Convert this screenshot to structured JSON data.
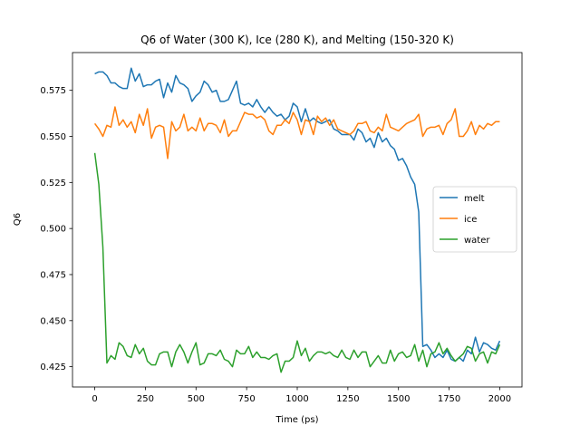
{
  "chart_data": {
    "type": "line",
    "title": "Q6 of Water (300 K), Ice (280 K), and Melting (150-320 K)",
    "xlabel": "Time  (ps)",
    "ylabel": "Q6",
    "xlim": [
      -110,
      2110
    ],
    "ylim": [
      0.414,
      0.5955
    ],
    "xticks": [
      0,
      250,
      500,
      750,
      1000,
      1250,
      1500,
      1750,
      2000
    ],
    "xtick_labels": [
      "0",
      "250",
      "500",
      "750",
      "1000",
      "1250",
      "1500",
      "1750",
      "2000"
    ],
    "yticks": [
      0.425,
      0.45,
      0.475,
      0.5,
      0.525,
      0.55,
      0.575
    ],
    "ytick_labels": [
      "0.425",
      "0.450",
      "0.475",
      "0.500",
      "0.525",
      "0.550",
      "0.575"
    ],
    "grid": false,
    "legend_position": "center-right",
    "series": [
      {
        "name": "melt",
        "color": "#1f77b4",
        "x": [
          0,
          20,
          40,
          60,
          80,
          100,
          120,
          140,
          160,
          180,
          200,
          220,
          240,
          260,
          280,
          300,
          320,
          340,
          360,
          380,
          400,
          420,
          440,
          460,
          480,
          500,
          520,
          540,
          560,
          580,
          600,
          620,
          640,
          660,
          680,
          700,
          720,
          740,
          760,
          780,
          800,
          820,
          840,
          860,
          880,
          900,
          920,
          940,
          960,
          980,
          1000,
          1020,
          1040,
          1060,
          1080,
          1100,
          1120,
          1140,
          1160,
          1180,
          1200,
          1220,
          1240,
          1260,
          1280,
          1300,
          1320,
          1340,
          1360,
          1380,
          1400,
          1420,
          1440,
          1460,
          1480,
          1500,
          1520,
          1540,
          1560,
          1580,
          1600,
          1620,
          1640,
          1660,
          1680,
          1700,
          1720,
          1740,
          1760,
          1780,
          1800,
          1820,
          1840,
          1860,
          1880,
          1900,
          1920,
          1940,
          1960,
          1980,
          2000
        ],
        "y": [
          0.584,
          0.585,
          0.585,
          0.583,
          0.579,
          0.579,
          0.577,
          0.576,
          0.576,
          0.587,
          0.58,
          0.584,
          0.577,
          0.578,
          0.578,
          0.58,
          0.581,
          0.571,
          0.579,
          0.574,
          0.583,
          0.579,
          0.578,
          0.576,
          0.569,
          0.572,
          0.574,
          0.58,
          0.578,
          0.574,
          0.575,
          0.569,
          0.569,
          0.57,
          0.575,
          0.58,
          0.568,
          0.567,
          0.568,
          0.566,
          0.57,
          0.566,
          0.563,
          0.566,
          0.563,
          0.561,
          0.562,
          0.559,
          0.561,
          0.568,
          0.566,
          0.558,
          0.565,
          0.558,
          0.56,
          0.558,
          0.557,
          0.558,
          0.559,
          0.554,
          0.553,
          0.551,
          0.551,
          0.551,
          0.548,
          0.554,
          0.552,
          0.547,
          0.549,
          0.544,
          0.552,
          0.547,
          0.549,
          0.545,
          0.543,
          0.537,
          0.538,
          0.534,
          0.528,
          0.524,
          0.509,
          0.436,
          0.437,
          0.434,
          0.43,
          0.432,
          0.43,
          0.434,
          0.429,
          0.428,
          0.43,
          0.428,
          0.434,
          0.432,
          0.441,
          0.433,
          0.438,
          0.437,
          0.435,
          0.434,
          0.439
        ]
      },
      {
        "name": "ice",
        "color": "#ff7f0e",
        "x": [
          0,
          20,
          40,
          60,
          80,
          100,
          120,
          140,
          160,
          180,
          200,
          220,
          240,
          260,
          280,
          300,
          320,
          340,
          360,
          380,
          400,
          420,
          440,
          460,
          480,
          500,
          520,
          540,
          560,
          580,
          600,
          620,
          640,
          660,
          680,
          700,
          720,
          740,
          760,
          780,
          800,
          820,
          840,
          860,
          880,
          900,
          920,
          940,
          960,
          980,
          1000,
          1020,
          1040,
          1060,
          1080,
          1100,
          1120,
          1140,
          1160,
          1180,
          1200,
          1220,
          1240,
          1260,
          1280,
          1300,
          1320,
          1340,
          1360,
          1380,
          1400,
          1420,
          1440,
          1460,
          1480,
          1500,
          1520,
          1540,
          1560,
          1580,
          1600,
          1620,
          1640,
          1660,
          1680,
          1700,
          1720,
          1740,
          1760,
          1780,
          1800,
          1820,
          1840,
          1860,
          1880,
          1900,
          1920,
          1940,
          1960,
          1980,
          2000
        ],
        "y": [
          0.557,
          0.554,
          0.55,
          0.556,
          0.555,
          0.566,
          0.556,
          0.559,
          0.555,
          0.558,
          0.552,
          0.562,
          0.556,
          0.565,
          0.549,
          0.555,
          0.556,
          0.555,
          0.538,
          0.558,
          0.553,
          0.555,
          0.562,
          0.553,
          0.555,
          0.553,
          0.56,
          0.553,
          0.557,
          0.557,
          0.556,
          0.552,
          0.559,
          0.55,
          0.553,
          0.553,
          0.558,
          0.563,
          0.562,
          0.562,
          0.56,
          0.561,
          0.559,
          0.553,
          0.551,
          0.556,
          0.556,
          0.559,
          0.557,
          0.563,
          0.559,
          0.551,
          0.559,
          0.558,
          0.551,
          0.561,
          0.558,
          0.56,
          0.556,
          0.559,
          0.554,
          0.553,
          0.552,
          0.551,
          0.553,
          0.557,
          0.557,
          0.558,
          0.553,
          0.552,
          0.555,
          0.553,
          0.562,
          0.555,
          0.554,
          0.553,
          0.555,
          0.557,
          0.558,
          0.559,
          0.562,
          0.55,
          0.554,
          0.555,
          0.555,
          0.556,
          0.551,
          0.557,
          0.559,
          0.565,
          0.55,
          0.55,
          0.553,
          0.558,
          0.551,
          0.556,
          0.554,
          0.557,
          0.556,
          0.558,
          0.558
        ]
      },
      {
        "name": "water",
        "color": "#2ca02c",
        "x": [
          0,
          20,
          40,
          60,
          80,
          100,
          120,
          140,
          160,
          180,
          200,
          220,
          240,
          260,
          280,
          300,
          320,
          340,
          360,
          380,
          400,
          420,
          440,
          460,
          480,
          500,
          520,
          540,
          560,
          580,
          600,
          620,
          640,
          660,
          680,
          700,
          720,
          740,
          760,
          780,
          800,
          820,
          840,
          860,
          880,
          900,
          920,
          940,
          960,
          980,
          1000,
          1020,
          1040,
          1060,
          1080,
          1100,
          1120,
          1140,
          1160,
          1180,
          1200,
          1220,
          1240,
          1260,
          1280,
          1300,
          1320,
          1340,
          1360,
          1380,
          1400,
          1420,
          1440,
          1460,
          1480,
          1500,
          1520,
          1540,
          1560,
          1580,
          1600,
          1620,
          1640,
          1660,
          1680,
          1700,
          1720,
          1740,
          1760,
          1780,
          1800,
          1820,
          1840,
          1860,
          1880,
          1900,
          1920,
          1940,
          1960,
          1980,
          2000
        ],
        "y": [
          0.541,
          0.524,
          0.49,
          0.427,
          0.431,
          0.429,
          0.438,
          0.436,
          0.431,
          0.43,
          0.437,
          0.432,
          0.435,
          0.428,
          0.426,
          0.426,
          0.432,
          0.433,
          0.433,
          0.425,
          0.433,
          0.437,
          0.433,
          0.427,
          0.433,
          0.438,
          0.426,
          0.427,
          0.432,
          0.432,
          0.431,
          0.434,
          0.429,
          0.428,
          0.425,
          0.434,
          0.432,
          0.432,
          0.436,
          0.43,
          0.433,
          0.43,
          0.43,
          0.429,
          0.431,
          0.432,
          0.422,
          0.428,
          0.428,
          0.43,
          0.439,
          0.431,
          0.435,
          0.428,
          0.431,
          0.433,
          0.433,
          0.432,
          0.433,
          0.431,
          0.43,
          0.434,
          0.43,
          0.429,
          0.434,
          0.43,
          0.433,
          0.433,
          0.425,
          0.428,
          0.431,
          0.427,
          0.427,
          0.434,
          0.428,
          0.432,
          0.433,
          0.43,
          0.431,
          0.437,
          0.428,
          0.434,
          0.425,
          0.432,
          0.433,
          0.438,
          0.432,
          0.435,
          0.431,
          0.428,
          0.43,
          0.432,
          0.436,
          0.435,
          0.428,
          0.432,
          0.433,
          0.427,
          0.433,
          0.432,
          0.437
        ]
      }
    ]
  }
}
